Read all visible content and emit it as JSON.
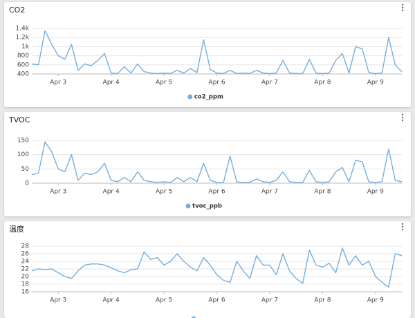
{
  "chart_data": [
    {
      "type": "line",
      "title": "CO2",
      "categories": [
        null,
        null,
        null,
        null,
        "Apr 3",
        null,
        null,
        null,
        null,
        null,
        null,
        null,
        "Apr 4",
        null,
        null,
        null,
        null,
        null,
        null,
        null,
        "Apr 5",
        null,
        null,
        null,
        null,
        null,
        null,
        null,
        "Apr 6",
        null,
        null,
        null,
        null,
        null,
        null,
        null,
        "Apr 7",
        null,
        null,
        null,
        null,
        null,
        null,
        null,
        "Apr 8",
        null,
        null,
        null,
        null,
        null,
        null,
        null,
        "Apr 9",
        null,
        null,
        null,
        null
      ],
      "series": [
        {
          "name": "co2_ppm",
          "color": "#74aee0",
          "values": [
            620,
            600,
            1350,
            1050,
            800,
            720,
            1050,
            480,
            620,
            580,
            700,
            850,
            420,
            410,
            560,
            420,
            620,
            450,
            420,
            410,
            420,
            410,
            480,
            420,
            520,
            430,
            1150,
            500,
            420,
            410,
            480,
            410,
            420,
            410,
            480,
            420,
            410,
            420,
            700,
            420,
            410,
            410,
            720,
            420,
            410,
            420,
            700,
            850,
            420,
            1000,
            950,
            430,
            410,
            420,
            1200,
            600,
            450
          ]
        }
      ],
      "ylim": [
        400,
        1400
      ],
      "yticks": [
        400,
        600,
        800,
        {
          "value": 1000,
          "label": "1k"
        },
        {
          "value": 1200,
          "label": "1.2k"
        },
        {
          "value": 1400,
          "label": "1.4k"
        }
      ],
      "grid": true
    },
    {
      "type": "line",
      "title": "TVOC",
      "categories": [
        null,
        null,
        null,
        null,
        "Apr 3",
        null,
        null,
        null,
        null,
        null,
        null,
        null,
        "Apr 4",
        null,
        null,
        null,
        null,
        null,
        null,
        null,
        "Apr 5",
        null,
        null,
        null,
        null,
        null,
        null,
        null,
        "Apr 6",
        null,
        null,
        null,
        null,
        null,
        null,
        null,
        "Apr 7",
        null,
        null,
        null,
        null,
        null,
        null,
        null,
        "Apr 8",
        null,
        null,
        null,
        null,
        null,
        null,
        null,
        "Apr 9",
        null,
        null,
        null,
        null
      ],
      "series": [
        {
          "name": "tvoc_ppb",
          "color": "#74aee0",
          "values": [
            30,
            35,
            145,
            110,
            50,
            40,
            100,
            10,
            35,
            30,
            40,
            70,
            10,
            5,
            20,
            5,
            40,
            10,
            5,
            3,
            5,
            3,
            20,
            5,
            20,
            5,
            70,
            10,
            3,
            2,
            95,
            5,
            3,
            3,
            15,
            5,
            3,
            10,
            40,
            5,
            3,
            3,
            45,
            5,
            3,
            5,
            40,
            55,
            5,
            80,
            75,
            5,
            3,
            5,
            120,
            10,
            5
          ]
        }
      ],
      "ylim": [
        0,
        150
      ],
      "yticks": [
        0,
        50,
        100,
        150
      ],
      "grid": true
    },
    {
      "type": "line",
      "title": "温度",
      "categories": [
        null,
        null,
        null,
        null,
        "Apr 3",
        null,
        null,
        null,
        null,
        null,
        null,
        null,
        "Apr 4",
        null,
        null,
        null,
        null,
        null,
        null,
        null,
        "Apr 5",
        null,
        null,
        null,
        null,
        null,
        null,
        null,
        "Apr 6",
        null,
        null,
        null,
        null,
        null,
        null,
        null,
        "Apr 7",
        null,
        null,
        null,
        null,
        null,
        null,
        null,
        "Apr 8",
        null,
        null,
        null,
        null,
        null,
        null,
        null,
        "Apr 9",
        null,
        null,
        null,
        null
      ],
      "series": [
        {
          "color": "#74aee0",
          "values": [
            21.5,
            22,
            21.8,
            22,
            21,
            20,
            19.5,
            21.5,
            23,
            23.3,
            23.3,
            23,
            22.3,
            21.5,
            21,
            21.8,
            22,
            26.5,
            24.5,
            25,
            23,
            24,
            26,
            24,
            22.5,
            21.5,
            25,
            23,
            20.5,
            19,
            18.5,
            24,
            21.5,
            19.5,
            25.5,
            23,
            23,
            20.5,
            26,
            21.5,
            19.5,
            18.2,
            27,
            23,
            22.5,
            23.5,
            21,
            27.5,
            23,
            25.5,
            23,
            24,
            20,
            18.5,
            17.2,
            26,
            25.5
          ]
        }
      ],
      "ylim": [
        16,
        28
      ],
      "yticks": [
        16,
        18,
        20,
        22,
        24,
        26,
        28
      ],
      "grid": true
    }
  ]
}
